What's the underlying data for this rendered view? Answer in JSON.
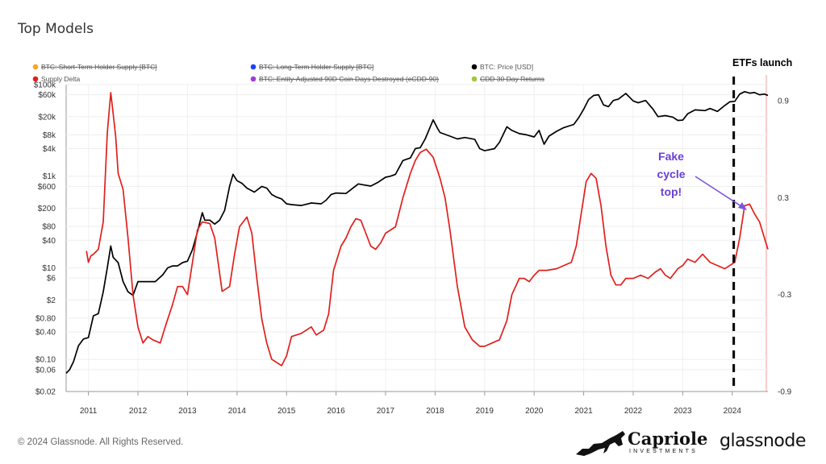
{
  "header": {
    "title": "Top Models"
  },
  "footer": {
    "copyright": "© 2024 Glassnode. All Rights Reserved."
  },
  "branding": {
    "capriole": "Capriole",
    "capriole_sub": "INVESTMENTS",
    "glassnode": "glassnode"
  },
  "annotations": {
    "etf": "ETFs launch",
    "fake_line1": "Fake",
    "fake_line2": "cycle",
    "fake_line3": "top!",
    "fake_color": "#6a3fd6"
  },
  "chart_data": {
    "type": "line",
    "title": "Top Models",
    "legend": [
      {
        "name": "BTC: Short-Term Holder Supply [BTC]",
        "color": "#f5a623",
        "disabled": true
      },
      {
        "name": "BTC: Long-Term Holder Supply [BTC]",
        "color": "#1f3fff",
        "disabled": true
      },
      {
        "name": "BTC: Price [USD]",
        "color": "#000000",
        "disabled": false
      },
      {
        "name": "Supply Delta",
        "color": "#e0201c",
        "disabled": false
      },
      {
        "name": "BTC: Entity-Adjusted 90D Coin Days Destroyed (eCDD-90)",
        "color": "#a23cd6",
        "disabled": true
      },
      {
        "name": "CDD 30 Day Returns",
        "color": "#a0c83c",
        "disabled": true
      }
    ],
    "x_ticks": [
      "2011",
      "2012",
      "2013",
      "2014",
      "2015",
      "2016",
      "2017",
      "2018",
      "2019",
      "2020",
      "2021",
      "2022",
      "2023",
      "2024"
    ],
    "x_range": [
      2010.55,
      2024.72
    ],
    "y_left_scale": "log",
    "y_left_range": [
      0.02,
      100000
    ],
    "y_left_ticks": [
      {
        "label": "$100k",
        "v": 100000
      },
      {
        "label": "$60k",
        "v": 60000
      },
      {
        "label": "$20k",
        "v": 20000
      },
      {
        "label": "$8k",
        "v": 8000
      },
      {
        "label": "$4k",
        "v": 4000
      },
      {
        "label": "$1k",
        "v": 1000
      },
      {
        "label": "$600",
        "v": 600
      },
      {
        "label": "$200",
        "v": 200
      },
      {
        "label": "$80",
        "v": 80
      },
      {
        "label": "$40",
        "v": 40
      },
      {
        "label": "$10",
        "v": 10
      },
      {
        "label": "$6",
        "v": 6
      },
      {
        "label": "$2",
        "v": 2
      },
      {
        "label": "$0.80",
        "v": 0.8
      },
      {
        "label": "$0.40",
        "v": 0.4
      },
      {
        "label": "$0.10",
        "v": 0.1
      },
      {
        "label": "$0.06",
        "v": 0.06
      },
      {
        "label": "$0.02",
        "v": 0.02
      }
    ],
    "y_right_range": [
      -0.9,
      1.0
    ],
    "y_right_ticks": [
      {
        "label": "0.9",
        "v": 0.9
      },
      {
        "label": "0.3",
        "v": 0.3
      },
      {
        "label": "-0.3",
        "v": -0.3
      },
      {
        "label": "-0.9",
        "v": -0.9
      }
    ],
    "etf_launch_x": 2024.03,
    "series": [
      {
        "name": "BTC: Price [USD]",
        "axis": "left",
        "color": "#000000",
        "points": [
          [
            2010.55,
            0.05
          ],
          [
            2010.62,
            0.06
          ],
          [
            2010.7,
            0.09
          ],
          [
            2010.8,
            0.2
          ],
          [
            2010.9,
            0.28
          ],
          [
            2011.0,
            0.3
          ],
          [
            2011.1,
            0.9
          ],
          [
            2011.2,
            1.0
          ],
          [
            2011.3,
            3
          ],
          [
            2011.38,
            10
          ],
          [
            2011.45,
            30
          ],
          [
            2011.5,
            17
          ],
          [
            2011.6,
            13
          ],
          [
            2011.7,
            5
          ],
          [
            2011.8,
            3
          ],
          [
            2011.9,
            2.5
          ],
          [
            2012.0,
            5
          ],
          [
            2012.1,
            5
          ],
          [
            2012.2,
            5
          ],
          [
            2012.35,
            5
          ],
          [
            2012.5,
            7
          ],
          [
            2012.6,
            10
          ],
          [
            2012.7,
            11
          ],
          [
            2012.8,
            11
          ],
          [
            2012.9,
            13
          ],
          [
            2013.0,
            14
          ],
          [
            2013.1,
            25
          ],
          [
            2013.2,
            60
          ],
          [
            2013.3,
            160
          ],
          [
            2013.35,
            110
          ],
          [
            2013.45,
            110
          ],
          [
            2013.55,
            90
          ],
          [
            2013.65,
            110
          ],
          [
            2013.75,
            180
          ],
          [
            2013.85,
            600
          ],
          [
            2013.92,
            1100
          ],
          [
            2014.0,
            800
          ],
          [
            2014.1,
            700
          ],
          [
            2014.2,
            550
          ],
          [
            2014.35,
            450
          ],
          [
            2014.5,
            600
          ],
          [
            2014.6,
            550
          ],
          [
            2014.7,
            400
          ],
          [
            2014.8,
            350
          ],
          [
            2014.9,
            320
          ],
          [
            2015.0,
            250
          ],
          [
            2015.1,
            240
          ],
          [
            2015.3,
            230
          ],
          [
            2015.5,
            260
          ],
          [
            2015.7,
            250
          ],
          [
            2015.8,
            300
          ],
          [
            2015.9,
            400
          ],
          [
            2016.0,
            430
          ],
          [
            2016.2,
            420
          ],
          [
            2016.45,
            680
          ],
          [
            2016.55,
            650
          ],
          [
            2016.7,
            610
          ],
          [
            2016.85,
            740
          ],
          [
            2017.0,
            950
          ],
          [
            2017.1,
            1000
          ],
          [
            2017.2,
            1100
          ],
          [
            2017.35,
            2200
          ],
          [
            2017.5,
            2500
          ],
          [
            2017.6,
            4000
          ],
          [
            2017.7,
            4200
          ],
          [
            2017.8,
            6500
          ],
          [
            2017.96,
            17000
          ],
          [
            2018.05,
            11000
          ],
          [
            2018.1,
            9000
          ],
          [
            2018.3,
            7500
          ],
          [
            2018.45,
            6500
          ],
          [
            2018.6,
            7000
          ],
          [
            2018.8,
            6400
          ],
          [
            2018.9,
            4000
          ],
          [
            2019.0,
            3600
          ],
          [
            2019.1,
            3800
          ],
          [
            2019.2,
            4000
          ],
          [
            2019.3,
            5500
          ],
          [
            2019.45,
            12000
          ],
          [
            2019.55,
            10000
          ],
          [
            2019.7,
            8500
          ],
          [
            2019.85,
            8000
          ],
          [
            2020.0,
            7200
          ],
          [
            2020.1,
            10000
          ],
          [
            2020.2,
            5000
          ],
          [
            2020.3,
            7500
          ],
          [
            2020.45,
            9500
          ],
          [
            2020.6,
            11500
          ],
          [
            2020.8,
            13500
          ],
          [
            2020.9,
            19000
          ],
          [
            2021.0,
            29000
          ],
          [
            2021.1,
            47000
          ],
          [
            2021.2,
            58000
          ],
          [
            2021.3,
            60000
          ],
          [
            2021.4,
            36000
          ],
          [
            2021.5,
            33000
          ],
          [
            2021.6,
            45000
          ],
          [
            2021.7,
            48000
          ],
          [
            2021.85,
            64000
          ],
          [
            2022.0,
            44000
          ],
          [
            2022.1,
            40000
          ],
          [
            2022.25,
            45000
          ],
          [
            2022.4,
            29000
          ],
          [
            2022.5,
            20000
          ],
          [
            2022.65,
            21000
          ],
          [
            2022.8,
            19500
          ],
          [
            2022.9,
            16500
          ],
          [
            2023.0,
            16800
          ],
          [
            2023.1,
            23000
          ],
          [
            2023.25,
            28000
          ],
          [
            2023.45,
            27000
          ],
          [
            2023.55,
            30000
          ],
          [
            2023.7,
            26000
          ],
          [
            2023.85,
            35000
          ],
          [
            2023.95,
            42000
          ],
          [
            2024.05,
            43000
          ],
          [
            2024.15,
            62000
          ],
          [
            2024.25,
            70000
          ],
          [
            2024.35,
            65000
          ],
          [
            2024.45,
            67000
          ],
          [
            2024.55,
            60000
          ],
          [
            2024.65,
            62000
          ],
          [
            2024.72,
            58000
          ]
        ]
      },
      {
        "name": "Supply Delta",
        "axis": "right",
        "color": "#e0201c",
        "points": [
          [
            2010.96,
            -0.03
          ],
          [
            2011.0,
            -0.1
          ],
          [
            2011.05,
            -0.06
          ],
          [
            2011.1,
            -0.05
          ],
          [
            2011.2,
            -0.02
          ],
          [
            2011.3,
            0.15
          ],
          [
            2011.38,
            0.7
          ],
          [
            2011.45,
            0.95
          ],
          [
            2011.5,
            0.82
          ],
          [
            2011.55,
            0.68
          ],
          [
            2011.6,
            0.45
          ],
          [
            2011.7,
            0.35
          ],
          [
            2011.8,
            0.05
          ],
          [
            2011.9,
            -0.3
          ],
          [
            2012.0,
            -0.5
          ],
          [
            2012.1,
            -0.6
          ],
          [
            2012.2,
            -0.56
          ],
          [
            2012.3,
            -0.58
          ],
          [
            2012.45,
            -0.6
          ],
          [
            2012.55,
            -0.5
          ],
          [
            2012.7,
            -0.36
          ],
          [
            2012.8,
            -0.25
          ],
          [
            2012.9,
            -0.25
          ],
          [
            2013.0,
            -0.3
          ],
          [
            2013.1,
            -0.1
          ],
          [
            2013.2,
            0.1
          ],
          [
            2013.3,
            0.15
          ],
          [
            2013.45,
            0.14
          ],
          [
            2013.55,
            0.05
          ],
          [
            2013.7,
            -0.28
          ],
          [
            2013.85,
            -0.25
          ],
          [
            2013.95,
            -0.05
          ],
          [
            2014.05,
            0.12
          ],
          [
            2014.2,
            0.18
          ],
          [
            2014.3,
            0.08
          ],
          [
            2014.4,
            -0.2
          ],
          [
            2014.5,
            -0.45
          ],
          [
            2014.6,
            -0.6
          ],
          [
            2014.7,
            -0.7
          ],
          [
            2014.8,
            -0.72
          ],
          [
            2014.9,
            -0.74
          ],
          [
            2015.0,
            -0.68
          ],
          [
            2015.1,
            -0.56
          ],
          [
            2015.3,
            -0.54
          ],
          [
            2015.5,
            -0.5
          ],
          [
            2015.6,
            -0.55
          ],
          [
            2015.75,
            -0.52
          ],
          [
            2015.85,
            -0.42
          ],
          [
            2015.95,
            -0.15
          ],
          [
            2016.1,
            0.0
          ],
          [
            2016.2,
            0.05
          ],
          [
            2016.3,
            0.12
          ],
          [
            2016.4,
            0.17
          ],
          [
            2016.5,
            0.16
          ],
          [
            2016.6,
            0.08
          ],
          [
            2016.7,
            0.0
          ],
          [
            2016.8,
            -0.02
          ],
          [
            2016.9,
            0.02
          ],
          [
            2017.0,
            0.08
          ],
          [
            2017.1,
            0.1
          ],
          [
            2017.2,
            0.12
          ],
          [
            2017.35,
            0.3
          ],
          [
            2017.5,
            0.45
          ],
          [
            2017.6,
            0.53
          ],
          [
            2017.7,
            0.58
          ],
          [
            2017.82,
            0.6
          ],
          [
            2017.96,
            0.55
          ],
          [
            2018.1,
            0.42
          ],
          [
            2018.2,
            0.3
          ],
          [
            2018.3,
            0.1
          ],
          [
            2018.45,
            -0.25
          ],
          [
            2018.6,
            -0.5
          ],
          [
            2018.75,
            -0.58
          ],
          [
            2018.9,
            -0.62
          ],
          [
            2019.0,
            -0.62
          ],
          [
            2019.15,
            -0.6
          ],
          [
            2019.3,
            -0.58
          ],
          [
            2019.45,
            -0.46
          ],
          [
            2019.55,
            -0.3
          ],
          [
            2019.7,
            -0.2
          ],
          [
            2019.8,
            -0.2
          ],
          [
            2019.9,
            -0.22
          ],
          [
            2020.0,
            -0.18
          ],
          [
            2020.1,
            -0.15
          ],
          [
            2020.25,
            -0.15
          ],
          [
            2020.45,
            -0.14
          ],
          [
            2020.6,
            -0.12
          ],
          [
            2020.75,
            -0.1
          ],
          [
            2020.85,
            0.0
          ],
          [
            2020.95,
            0.2
          ],
          [
            2021.05,
            0.4
          ],
          [
            2021.15,
            0.45
          ],
          [
            2021.25,
            0.42
          ],
          [
            2021.35,
            0.25
          ],
          [
            2021.45,
            0.0
          ],
          [
            2021.55,
            -0.18
          ],
          [
            2021.65,
            -0.24
          ],
          [
            2021.75,
            -0.24
          ],
          [
            2021.85,
            -0.2
          ],
          [
            2022.0,
            -0.2
          ],
          [
            2022.15,
            -0.18
          ],
          [
            2022.3,
            -0.2
          ],
          [
            2022.45,
            -0.16
          ],
          [
            2022.55,
            -0.14
          ],
          [
            2022.65,
            -0.18
          ],
          [
            2022.75,
            -0.2
          ],
          [
            2022.9,
            -0.14
          ],
          [
            2023.0,
            -0.12
          ],
          [
            2023.1,
            -0.08
          ],
          [
            2023.25,
            -0.1
          ],
          [
            2023.4,
            -0.05
          ],
          [
            2023.55,
            -0.1
          ],
          [
            2023.7,
            -0.12
          ],
          [
            2023.85,
            -0.14
          ],
          [
            2023.95,
            -0.12
          ],
          [
            2024.05,
            -0.1
          ],
          [
            2024.15,
            0.05
          ],
          [
            2024.25,
            0.25
          ],
          [
            2024.35,
            0.26
          ],
          [
            2024.45,
            0.2
          ],
          [
            2024.55,
            0.15
          ],
          [
            2024.65,
            0.05
          ],
          [
            2024.72,
            -0.02
          ]
        ]
      }
    ]
  }
}
